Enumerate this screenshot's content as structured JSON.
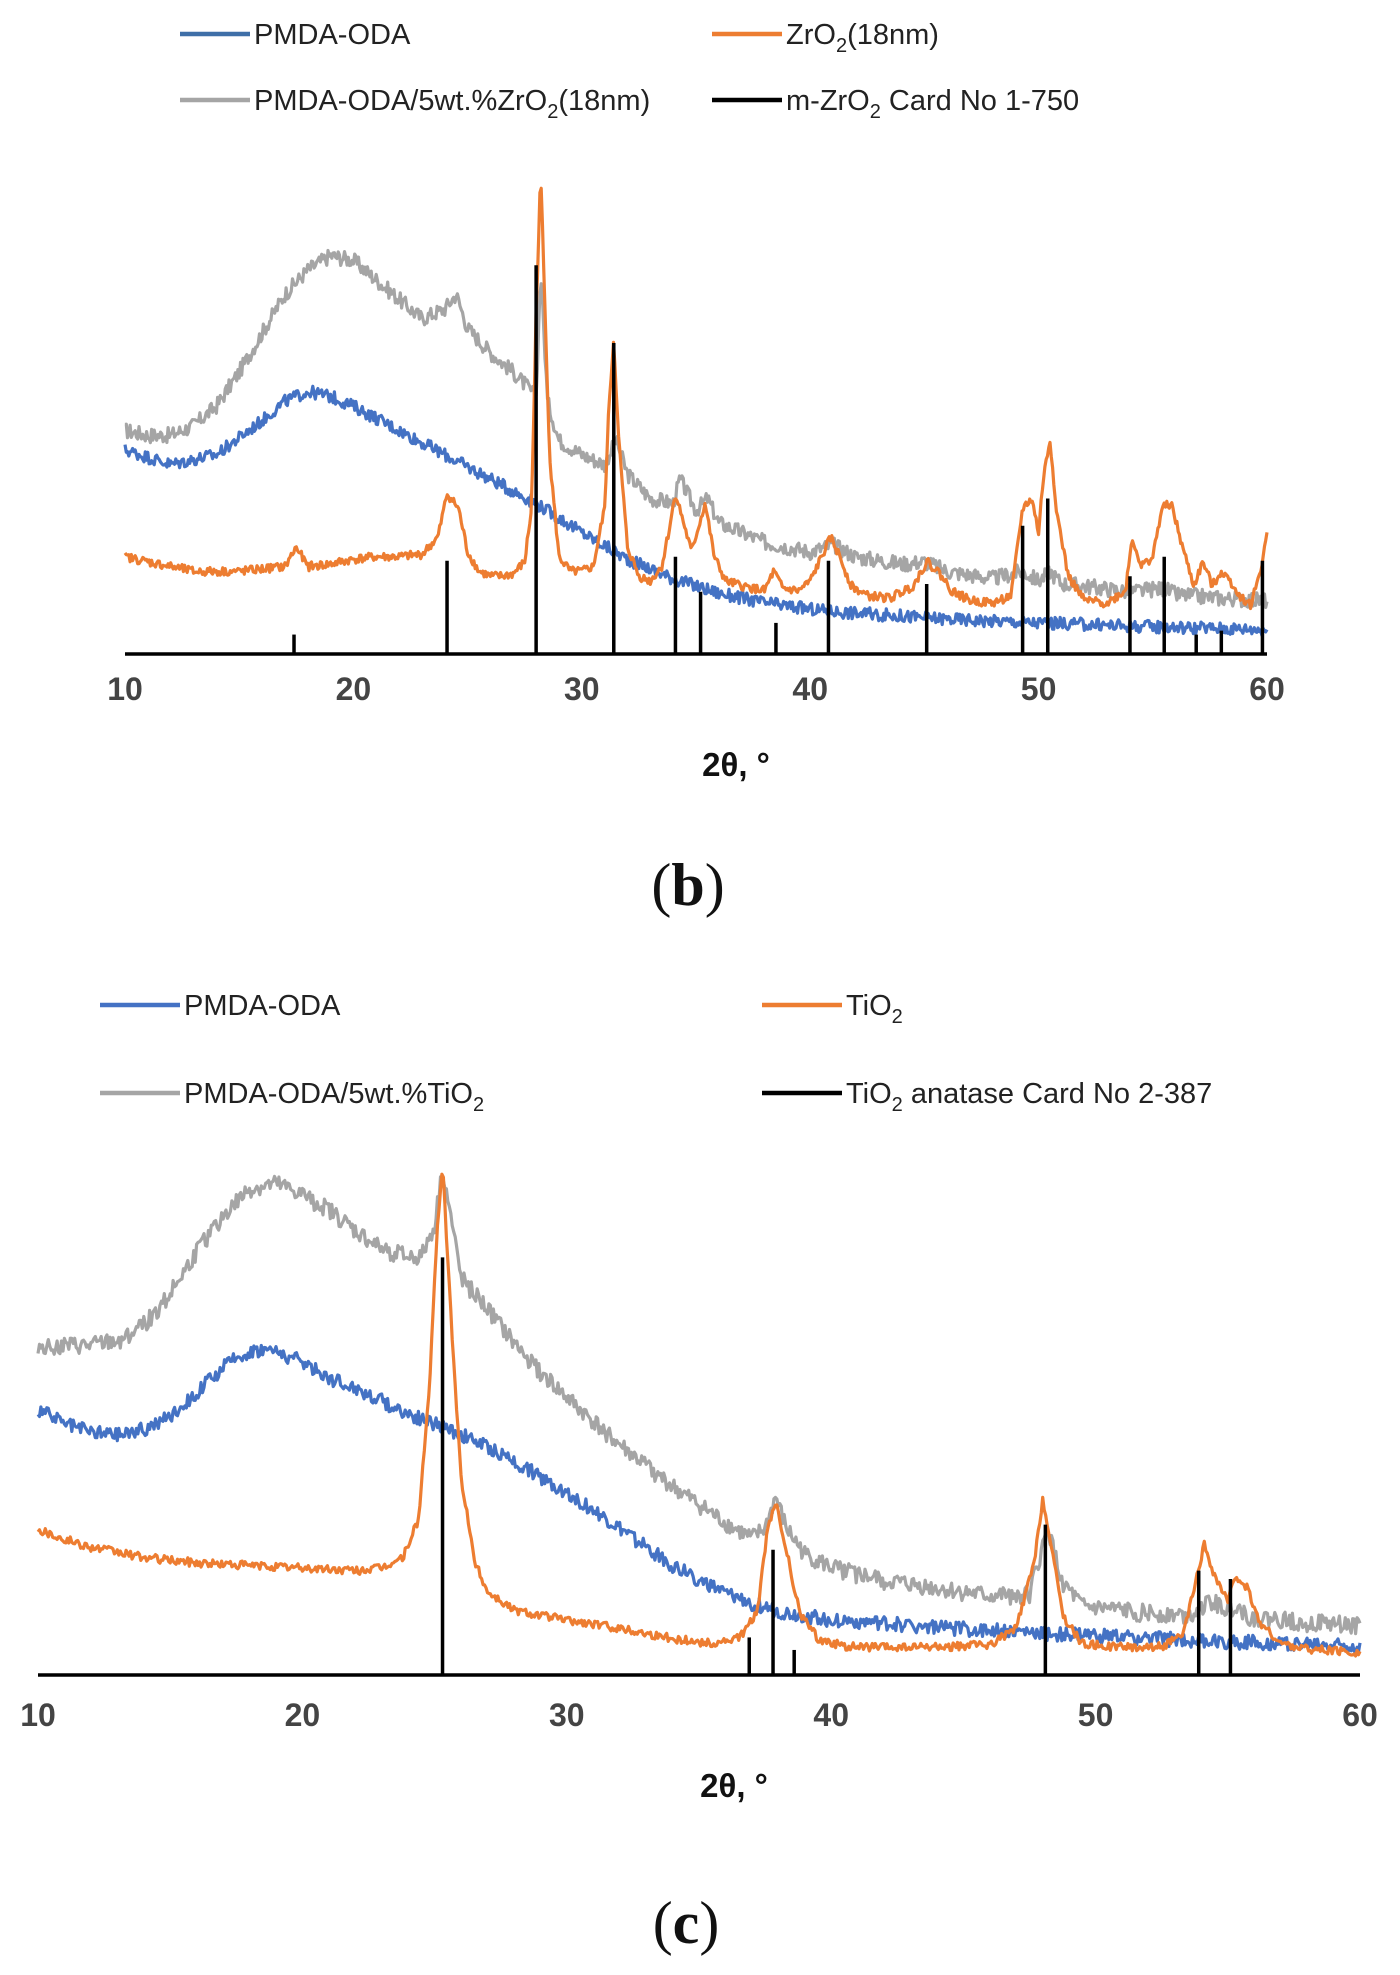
{
  "colors": {
    "pmda": "#4472C4",
    "oxide": "#ED7D31",
    "composite": "#A5A5A5",
    "card": "#000000",
    "legend_line_b_pmda": "#3F6FA8"
  },
  "chart_data": [
    {
      "type": "line",
      "panel": "b",
      "panel_label": "b",
      "xlabel": "2θ, °",
      "ylabel": "",
      "xlim": [
        10,
        60
      ],
      "xticks": [
        "10",
        "20",
        "30",
        "40",
        "50",
        "60"
      ],
      "legend": [
        {
          "base": "PMDA-ODA",
          "sub": "",
          "tail": "",
          "series": "pmda"
        },
        {
          "base": "ZrO",
          "sub": "2",
          "tail": "(18nm)",
          "series": "oxide"
        },
        {
          "base": "PMDA-ODA/5wt.%ZrO",
          "sub": "2",
          "tail": "(18nm)",
          "series": "composite"
        },
        {
          "base": "m-ZrO",
          "sub": "2",
          "tail": " Card No 1-750",
          "series": "card"
        }
      ],
      "series": [
        {
          "name": "PMDA-ODA",
          "key": "pmda",
          "x": [
            10,
            12,
            14,
            16,
            17,
            18,
            19,
            20,
            22,
            24,
            26,
            28,
            30,
            32,
            34,
            36,
            38,
            40,
            42,
            44,
            46,
            48,
            50,
            52,
            54,
            56,
            58,
            60
          ],
          "y": [
            42,
            39,
            41,
            48,
            52,
            54,
            53,
            51,
            46,
            41,
            36,
            31,
            25,
            19.5,
            15.5,
            12.5,
            10.5,
            9.2,
            8.4,
            7.8,
            7.2,
            6.8,
            6.4,
            6.1,
            5.8,
            5.5,
            5.3,
            5.1
          ]
        },
        {
          "name": "PMDA-ODA/5wt.%ZrO2(18nm)",
          "key": "composite",
          "x": [
            10,
            11,
            12,
            13,
            14,
            15,
            16,
            17,
            18,
            19,
            20,
            21,
            22,
            23,
            24,
            24.5,
            25,
            26,
            27,
            28,
            28.2,
            28.5,
            29,
            30,
            31,
            31.5,
            32,
            33,
            34,
            34.3,
            35,
            35.5,
            36,
            38,
            40,
            41,
            42,
            44,
            45,
            46,
            48,
            49.3,
            50,
            50.5,
            51,
            52,
            54,
            55.5,
            56,
            58,
            60
          ],
          "y": [
            46,
            45,
            45,
            47,
            51,
            58,
            66,
            74,
            79,
            82,
            81,
            77,
            73,
            69,
            71,
            74,
            67,
            62,
            58,
            53,
            79,
            52,
            44,
            41,
            39,
            44,
            37,
            32,
            31,
            36,
            29.5,
            32,
            27,
            23,
            21,
            22.5,
            20,
            18.5,
            19,
            17,
            15.5,
            17,
            15,
            17,
            14.5,
            14,
            12.8,
            13.5,
            12.2,
            11.5,
            11
          ]
        },
        {
          "name": "ZrO2(18nm)",
          "key": "oxide",
          "x": [
            10,
            11,
            12,
            13,
            14,
            15,
            16,
            17,
            17.5,
            18,
            19,
            20,
            21,
            22,
            23,
            23.7,
            24.1,
            24.6,
            25,
            25.5,
            26,
            26.5,
            27,
            27.5,
            27.8,
            28,
            28.2,
            28.6,
            29,
            29.5,
            30,
            30.5,
            31,
            31.2,
            31.4,
            31.6,
            32,
            32.5,
            33,
            33.5,
            33.8,
            34.1,
            34.4,
            34.8,
            35.1,
            35.4,
            35.8,
            36.3,
            37,
            38,
            38.4,
            38.8,
            39.5,
            40,
            40.5,
            40.9,
            41.3,
            41.8,
            42.5,
            43.5,
            44.5,
            45.1,
            45.6,
            46.2,
            47,
            48,
            48.8,
            49.3,
            49.7,
            50,
            50.2,
            50.5,
            50.8,
            51.3,
            52,
            53,
            53.8,
            54.1,
            54.5,
            55,
            55.4,
            55.8,
            56.3,
            56.8,
            57.2,
            57.6,
            58,
            58.4,
            58.8,
            59.3,
            59.8,
            60
          ],
          "y": [
            20,
            19,
            18,
            17,
            17,
            17,
            17.5,
            18,
            22,
            18,
            18.5,
            19.5,
            20,
            20,
            20.5,
            24,
            33,
            30,
            21,
            17,
            16,
            16,
            16.5,
            19,
            30,
            70,
            99,
            40,
            20,
            17,
            17,
            18,
            30,
            52,
            65,
            45,
            22,
            16,
            15,
            18,
            25,
            33,
            28,
            21,
            26,
            31,
            20,
            15,
            14,
            13,
            17,
            13.5,
            13,
            15,
            20,
            24,
            20,
            14,
            12,
            11.5,
            14,
            19,
            17,
            13,
            11,
            10.5,
            12,
            30,
            32,
            25,
            36,
            44,
            29,
            16,
            11,
            10.5,
            13,
            24,
            18,
            20,
            30,
            31,
            22,
            14,
            19,
            14,
            17,
            15,
            12,
            10,
            19,
            25
          ]
        }
      ],
      "card_peaks": {
        "name": "m-ZrO2 Card No 1-750",
        "positions": [
          17.4,
          24.1,
          28.0,
          31.4,
          34.1,
          35.2,
          38.5,
          40.8,
          45.1,
          49.3,
          50.4,
          54.0,
          55.5,
          56.9,
          58.0,
          59.8
        ],
        "intensities": [
          5,
          24,
          100,
          80,
          25,
          16,
          8,
          24,
          18,
          33,
          40,
          20,
          25,
          5,
          6,
          24
        ]
      }
    },
    {
      "type": "line",
      "panel": "c",
      "panel_label": "c",
      "xlabel": "2θ, °",
      "ylabel": "",
      "xlim": [
        10,
        60
      ],
      "xticks": [
        "10",
        "20",
        "30",
        "40",
        "50",
        "60"
      ],
      "legend": [
        {
          "base": "PMDA-ODA",
          "sub": "",
          "tail": "",
          "series": "pmda"
        },
        {
          "base": "TiO",
          "sub": "2",
          "tail": "",
          "series": "oxide"
        },
        {
          "base": "PMDA-ODA/5wt.%TiO",
          "sub": "2",
          "tail": "",
          "series": "composite"
        },
        {
          "base": "TiO",
          "sub": "2",
          "tail": " anatase Card No 2-387",
          "series": "card"
        }
      ],
      "series": [
        {
          "name": "PMDA-ODA",
          "key": "pmda",
          "x": [
            10,
            11,
            12,
            13,
            14,
            15,
            16,
            17,
            18,
            18.5,
            19,
            20,
            21,
            22,
            23,
            24,
            25,
            26,
            27,
            28,
            29,
            30,
            32,
            34,
            36,
            38,
            40,
            42,
            44,
            46,
            48,
            50,
            52,
            54,
            56,
            58,
            60
          ],
          "y": [
            51,
            48,
            46.5,
            46,
            47,
            49.5,
            54,
            59,
            62,
            62.5,
            62,
            60,
            57,
            55,
            52.5,
            50,
            48,
            46,
            43.5,
            41,
            38,
            35,
            28,
            21,
            15.5,
            12,
            10.5,
            9.8,
            9.2,
            8.5,
            8,
            7.5,
            7,
            6.5,
            6.2,
            5.9,
            5.7
          ]
        },
        {
          "name": "PMDA-ODA/5wt.%TiO2",
          "key": "composite",
          "x": [
            10,
            11,
            12,
            13,
            14,
            15,
            16,
            17,
            18,
            19,
            20,
            21,
            22,
            23,
            24,
            24.5,
            25,
            25.3,
            25.7,
            26,
            27,
            28,
            29,
            30,
            32,
            34,
            36,
            37,
            37.5,
            37.9,
            38.3,
            39,
            40,
            42,
            44,
            46,
            47.5,
            48.2,
            48.7,
            49.5,
            52,
            53.5,
            54,
            54.5,
            55,
            55.3,
            55.8,
            57,
            58,
            60
          ],
          "y": [
            63,
            63,
            63,
            64,
            67,
            73,
            81,
            88,
            93,
            94,
            92,
            89,
            85,
            81.5,
            80,
            80,
            86,
            97,
            85,
            76,
            70,
            63.5,
            58,
            53,
            44,
            36,
            29,
            26,
            28,
            34,
            28,
            23,
            20.5,
            18,
            16.5,
            15,
            15.5,
            28,
            18,
            13,
            11.8,
            11.5,
            13,
            14,
            12,
            13.5,
            11,
            10.5,
            10,
            9.5
          ]
        },
        {
          "name": "TiO2",
          "key": "oxide",
          "x": [
            10,
            11,
            12,
            13,
            14,
            16,
            18,
            20,
            22,
            23,
            23.8,
            24.4,
            24.8,
            25.1,
            25.3,
            25.6,
            26,
            26.5,
            27,
            28,
            30,
            32,
            34,
            35.5,
            36.5,
            37.2,
            37.6,
            37.9,
            38.3,
            38.8,
            39.5,
            40.5,
            42,
            44,
            46,
            47,
            47.7,
            48.0,
            48.3,
            48.8,
            49.5,
            51,
            52.5,
            53.3,
            53.8,
            54.1,
            54.5,
            55,
            55.3,
            55.7,
            56.2,
            57,
            58,
            60
          ],
          "y": [
            28,
            26,
            24.5,
            23.5,
            22.5,
            21.5,
            21,
            20.5,
            20,
            20.5,
            22.5,
            30,
            55,
            85,
            98,
            70,
            38,
            22,
            16,
            12.5,
            10.5,
            9,
            7,
            6,
            7,
            12,
            28,
            33,
            24,
            12,
            7,
            5.5,
            5.3,
            5.3,
            5.8,
            9,
            22,
            34,
            25,
            11,
            6,
            5.3,
            5.5,
            7.5,
            18,
            25,
            19,
            14,
            19,
            17,
            10,
            6,
            5,
            4.2
          ]
        }
      ],
      "card_peaks": {
        "name": "TiO2 anatase Card No 2-387",
        "positions": [
          25.3,
          36.9,
          37.8,
          38.6,
          48.1,
          53.9,
          55.1
        ],
        "intensities": [
          100,
          9,
          30,
          6,
          36,
          25,
          23
        ]
      }
    }
  ]
}
